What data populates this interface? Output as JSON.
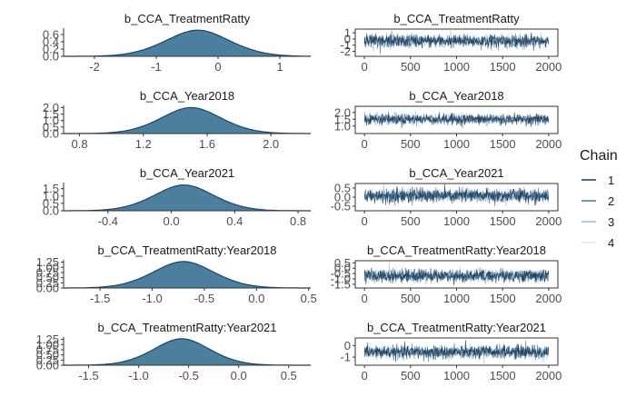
{
  "chart_data": {
    "type": "area",
    "legend": {
      "title": "Chain",
      "placement": "right",
      "entries": [
        "1",
        "2",
        "3",
        "4"
      ],
      "colors": [
        "#1b3d5c",
        "#4f7694",
        "#9fbdd2",
        "#dde9f2"
      ]
    },
    "fill_color": "#4c7f9e",
    "line_color": "#1e4466",
    "rows": [
      {
        "parameter": "b_CCA_TreatmentRatty",
        "density": {
          "title": "b_CCA_TreatmentRatty",
          "xlim": [
            -2.5,
            1.5
          ],
          "ylim": [
            0,
            0.75
          ],
          "xticks": [
            -2,
            -1,
            0,
            1
          ],
          "xtick_labels": [
            "-2",
            "-1",
            "0",
            "1"
          ],
          "yticks": [
            0,
            0.2,
            0.4,
            0.6
          ],
          "ytick_labels": [
            "0.0",
            "0.2",
            "0.4",
            "0.6"
          ],
          "mean": -0.33,
          "sd": 0.55,
          "peak": 0.72
        },
        "trace": {
          "title": "b_CCA_TreatmentRatty",
          "xlim": [
            -100,
            2100
          ],
          "ylim": [
            -2.8,
            1.6
          ],
          "xticks": [
            0,
            500,
            1000,
            1500,
            2000
          ],
          "xtick_labels": [
            "0",
            "500",
            "1000",
            "1500",
            "2000"
          ],
          "yticks": [
            1,
            0,
            -1,
            -2
          ],
          "ytick_labels": [
            "1",
            "0",
            "-1",
            "-2"
          ],
          "mean": -0.33,
          "sd": 0.55
        }
      },
      {
        "parameter": "b_CCA_Year2018",
        "density": {
          "title": "b_CCA_Year2018",
          "xlim": [
            0.7,
            2.25
          ],
          "ylim": [
            0,
            2.1
          ],
          "xticks": [
            0.8,
            1.2,
            1.6,
            2.0
          ],
          "xtick_labels": [
            "0.8",
            "1.2",
            "1.6",
            "2.0"
          ],
          "yticks": [
            0.0,
            0.5,
            1.0,
            1.5,
            2.0
          ],
          "ytick_labels": [
            "0.0",
            "0.5",
            "1.0",
            "1.5",
            "2.0"
          ],
          "mean": 1.5,
          "sd": 0.2,
          "peak": 2.0
        },
        "trace": {
          "title": "b_CCA_Year2018",
          "xlim": [
            -100,
            2100
          ],
          "ylim": [
            0.45,
            2.45
          ],
          "xticks": [
            0,
            500,
            1000,
            1500,
            2000
          ],
          "xtick_labels": [
            "0",
            "500",
            "1000",
            "1500",
            "2000"
          ],
          "yticks": [
            2.0,
            1.5,
            1.0
          ],
          "ytick_labels": [
            "2.0",
            "1.5",
            "1.0"
          ],
          "mean": 1.5,
          "sd": 0.2
        }
      },
      {
        "parameter": "b_CCA_Year2021",
        "density": {
          "title": "b_CCA_Year2021",
          "xlim": [
            -0.68,
            0.88
          ],
          "ylim": [
            0,
            1.85
          ],
          "xticks": [
            -0.4,
            0.0,
            0.4,
            0.8
          ],
          "xtick_labels": [
            "-0.4",
            "0.0",
            "0.4",
            "0.8"
          ],
          "yticks": [
            0.0,
            0.5,
            1.0,
            1.5
          ],
          "ytick_labels": [
            "0.0",
            "0.5",
            "1.0",
            "1.5"
          ],
          "mean": 0.08,
          "sd": 0.2,
          "peak": 1.75
        },
        "trace": {
          "title": "b_CCA_Year2021",
          "xlim": [
            -100,
            2100
          ],
          "ylim": [
            -0.75,
            0.75
          ],
          "xticks": [
            0,
            500,
            1000,
            1500,
            2000
          ],
          "xtick_labels": [
            "0",
            "500",
            "1000",
            "1500",
            "2000"
          ],
          "yticks": [
            0.5,
            0.0,
            -0.5
          ],
          "ytick_labels": [
            "0.5",
            "0.0",
            "-0.5"
          ],
          "mean": 0.08,
          "sd": 0.2
        }
      },
      {
        "parameter": "b_CCA_TreatmentRatty:Year2018",
        "density": {
          "title": "b_CCA_TreatmentRatty:Year2018",
          "xlim": [
            -1.85,
            0.52
          ],
          "ylim": [
            0,
            1.32
          ],
          "xticks": [
            -1.5,
            -1.0,
            -0.5,
            0.0,
            0.5
          ],
          "xtick_labels": [
            "-1.5",
            "-1.0",
            "-0.5",
            "0.0",
            "0.5"
          ],
          "yticks": [
            0.0,
            0.25,
            0.5,
            0.75,
            1.0,
            1.25
          ],
          "ytick_labels": [
            "0.00",
            "0.25",
            "0.50",
            "0.75",
            "1.00",
            "1.25"
          ],
          "mean": -0.7,
          "sd": 0.31,
          "peak": 1.28
        },
        "trace": {
          "title": "b_CCA_TreatmentRatty:Year2018",
          "xlim": [
            -100,
            2100
          ],
          "ylim": [
            -1.85,
            0.7
          ],
          "xticks": [
            0,
            500,
            1000,
            1500,
            2000
          ],
          "xtick_labels": [
            "0",
            "500",
            "1000",
            "1500",
            "2000"
          ],
          "yticks": [
            0.5,
            0.0,
            -0.5,
            -1.0,
            -1.5
          ],
          "ytick_labels": [
            "0.5",
            "0.0",
            "-0.5",
            "-1.0",
            "-1.5"
          ],
          "mean": -0.7,
          "sd": 0.31
        }
      },
      {
        "parameter": "b_CCA_TreatmentRatty:Year2021",
        "density": {
          "title": "b_CCA_TreatmentRatty:Year2021",
          "xlim": [
            -1.75,
            0.72
          ],
          "ylim": [
            0,
            1.32
          ],
          "xticks": [
            -1.5,
            -1.0,
            -0.5,
            0.0,
            0.5
          ],
          "xtick_labels": [
            "-1.5",
            "-1.0",
            "-0.5",
            "0.0",
            "0.5"
          ],
          "yticks": [
            0.0,
            0.25,
            0.5,
            0.75,
            1.0,
            1.25
          ],
          "ytick_labels": [
            "0.00",
            "0.25",
            "0.50",
            "0.75",
            "1.00",
            "1.25"
          ],
          "mean": -0.57,
          "sd": 0.3,
          "peak": 1.28
        },
        "trace": {
          "title": "b_CCA_TreatmentRatty:Year2021",
          "xlim": [
            -100,
            2100
          ],
          "ylim": [
            -1.7,
            0.65
          ],
          "xticks": [
            0,
            500,
            1000,
            1500,
            2000
          ],
          "xtick_labels": [
            "0",
            "500",
            "1000",
            "1500",
            "2000"
          ],
          "yticks": [
            0,
            -1
          ],
          "ytick_labels": [
            "0",
            "-1"
          ],
          "mean": -0.57,
          "sd": 0.3
        }
      }
    ]
  }
}
